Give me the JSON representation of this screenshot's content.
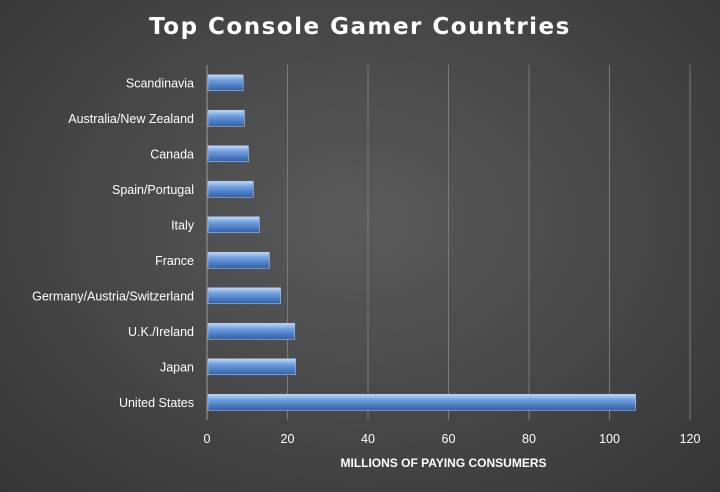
{
  "chart_data": {
    "type": "bar",
    "orientation": "horizontal",
    "title": "Top Console Gamer Countries",
    "xlabel": "MILLIONS OF PAYING CONSUMERS",
    "ylabel": "",
    "categories": [
      "Scandinavia",
      "Australia/New Zealand",
      "Canada",
      "Spain/Portugal",
      "Italy",
      "France",
      "Germany/Austria/Switzerland",
      "U.K./Ireland",
      "Japan",
      "United States"
    ],
    "values": [
      9,
      9.3,
      10.3,
      11.5,
      13,
      15.5,
      18.3,
      21.8,
      22,
      106.5
    ],
    "xlim": [
      0,
      120
    ],
    "xticks": [
      0,
      20,
      40,
      60,
      80,
      100,
      120
    ],
    "grid": true,
    "bar_color": "#5b8ed6",
    "background": "#4a4a4a"
  }
}
